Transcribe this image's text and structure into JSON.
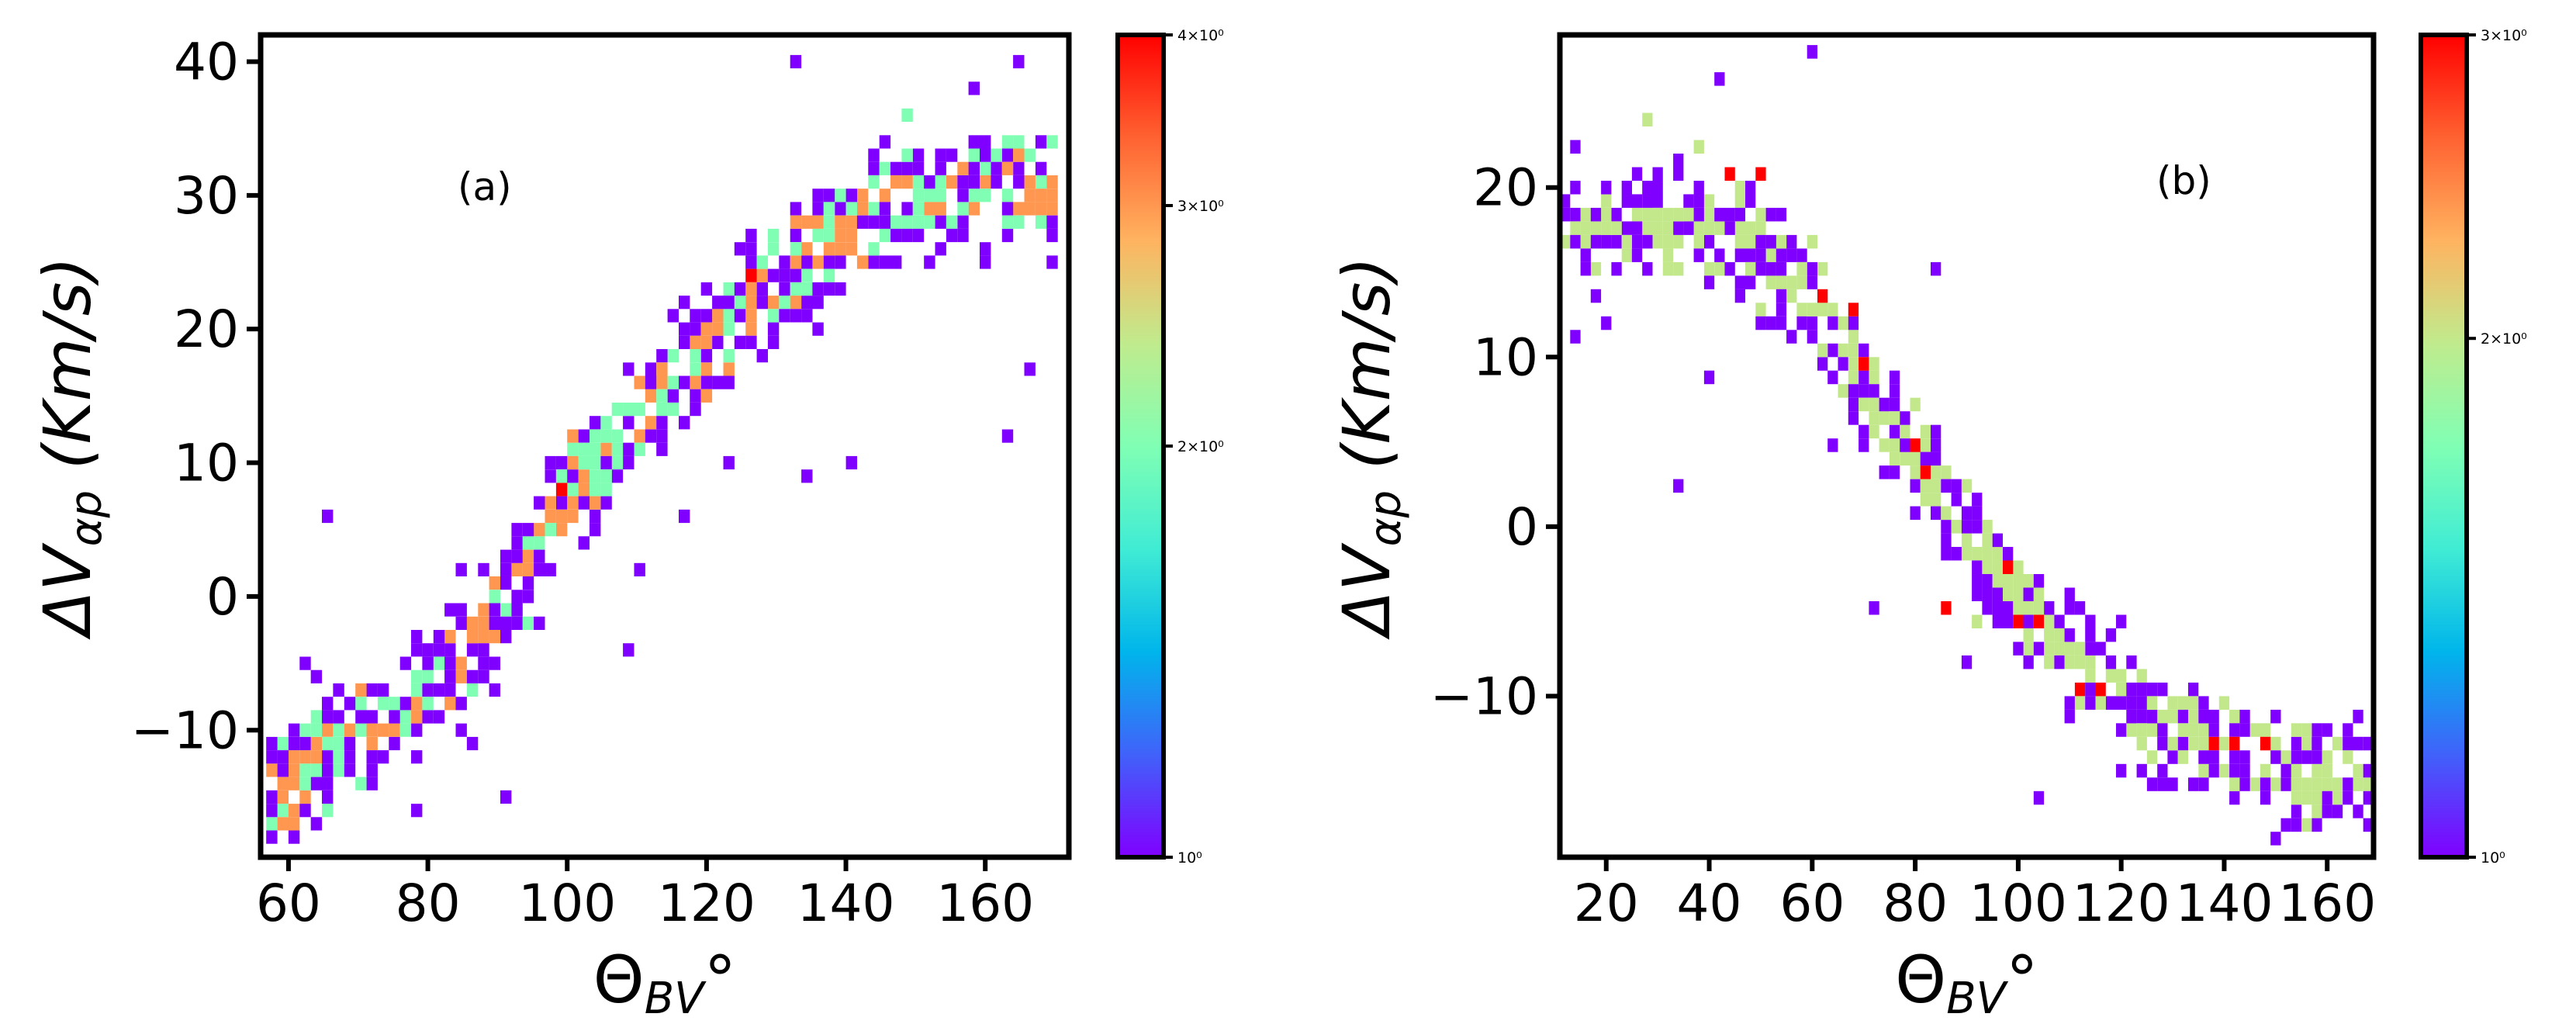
{
  "chart_data": [
    {
      "type": "heatmap",
      "panel_label": "(a)",
      "xlabel": "Θ",
      "xlabel_sub": "BV",
      "xlabel_suffix": "°",
      "ylabel": "ΔV",
      "ylabel_sub": "αp",
      "ylabel_suffix": " (Km/s)",
      "xlim": [
        56,
        172
      ],
      "ylim": [
        -19.5,
        42
      ],
      "xticks": [
        60,
        80,
        100,
        120,
        140,
        160
      ],
      "xtick_labels": [
        "60",
        "80",
        "100",
        "120",
        "140",
        "160"
      ],
      "yticks": [
        -10,
        0,
        10,
        20,
        30,
        40
      ],
      "ytick_labels": [
        "−10",
        "0",
        "10",
        "20",
        "30",
        "40"
      ],
      "bin_width": 1.6,
      "bin_height": 1.0,
      "colorbar": {
        "scale": "log",
        "range": [
          1,
          4
        ],
        "ticks": [
          1,
          2,
          3,
          4
        ],
        "tick_labels": [
          "10⁰",
          "2×10⁰",
          "3×10⁰",
          "4×10⁰"
        ],
        "colormap": [
          "#8000ff",
          "#4062fa",
          "#00b5eb",
          "#40ecd4",
          "#80ffb4",
          "#c0eb8d",
          "#ffb360",
          "#ff6231",
          "#ff0000"
        ]
      },
      "band": {
        "center": [
          [
            56,
            -17
          ],
          [
            64,
            -12
          ],
          [
            76,
            -9
          ],
          [
            88,
            -3
          ],
          [
            98,
            6
          ],
          [
            108,
            12
          ],
          [
            120,
            19
          ],
          [
            132,
            24
          ],
          [
            144,
            29
          ],
          [
            160,
            31
          ],
          [
            172,
            30
          ]
        ],
        "spread": 6,
        "count": 820,
        "seed": 11
      },
      "cells": [
        [
          57,
          -13.5,
          3
        ],
        [
          61,
          -18,
          1
        ],
        [
          62,
          -5.5,
          1
        ],
        [
          66,
          5.5,
          1
        ],
        [
          71,
          -10,
          2
        ],
        [
          73,
          -8.5,
          2
        ],
        [
          76,
          -10.5,
          2
        ],
        [
          78,
          -16.5,
          1
        ],
        [
          84,
          -10,
          1
        ],
        [
          86,
          -11.5,
          1
        ],
        [
          85,
          1.5,
          1
        ],
        [
          91,
          -15.5,
          1
        ],
        [
          93,
          -0.5,
          1
        ],
        [
          93,
          -2.5,
          1
        ],
        [
          96,
          -2.5,
          1
        ],
        [
          99,
          7.5,
          4
        ],
        [
          100,
          8.5,
          1
        ],
        [
          101,
          11.5,
          3
        ],
        [
          102,
          10.5,
          2
        ],
        [
          104,
          6.5,
          3
        ],
        [
          105,
          7.5,
          2
        ],
        [
          106,
          12.5,
          2
        ],
        [
          108,
          13.5,
          2
        ],
        [
          110,
          12,
          3
        ],
        [
          113,
          16.5,
          3
        ],
        [
          114,
          15,
          2
        ],
        [
          118,
          18,
          2
        ],
        [
          120,
          14.5,
          3
        ],
        [
          121,
          20.5,
          3
        ],
        [
          123,
          22.5,
          2
        ],
        [
          126,
          23.5,
          4
        ],
        [
          128,
          24.5,
          2
        ],
        [
          130,
          26.5,
          2
        ],
        [
          136,
          19.5,
          1
        ],
        [
          138,
          28.5,
          2
        ],
        [
          141,
          27,
          3
        ],
        [
          142,
          28.5,
          3
        ],
        [
          145,
          31.5,
          2
        ],
        [
          148,
          35.5,
          2
        ],
        [
          150,
          30.5,
          2
        ],
        [
          153,
          25.5,
          1
        ],
        [
          155,
          42,
          1
        ],
        [
          158,
          37.5,
          1
        ],
        [
          160,
          24.5,
          1
        ],
        [
          163,
          11.5,
          1
        ],
        [
          165,
          39.5,
          1
        ],
        [
          167,
          16.5,
          1
        ],
        [
          171,
          27.5,
          1
        ],
        [
          133,
          40,
          1
        ],
        [
          108,
          -4.5,
          1
        ],
        [
          110,
          1.5,
          1
        ],
        [
          116,
          5.5,
          1
        ],
        [
          123,
          9.5,
          1
        ],
        [
          134,
          8.5,
          1
        ],
        [
          140,
          9.5,
          1
        ]
      ]
    },
    {
      "type": "heatmap",
      "panel_label": "(b)",
      "xlabel": "Θ",
      "xlabel_sub": "BV",
      "xlabel_suffix": "°",
      "ylabel": "ΔV",
      "ylabel_sub": "αp",
      "ylabel_suffix": " (Km/s)",
      "xlim": [
        11,
        169
      ],
      "ylim": [
        -19.5,
        29
      ],
      "xticks": [
        20,
        40,
        60,
        80,
        100,
        120,
        140,
        160
      ],
      "xtick_labels": [
        "20",
        "40",
        "60",
        "80",
        "100",
        "120",
        "140",
        "160"
      ],
      "yticks": [
        -10,
        0,
        10,
        20
      ],
      "ytick_labels": [
        "−10",
        "0",
        "10",
        "20"
      ],
      "bin_width": 2.0,
      "bin_height": 0.8,
      "colorbar": {
        "scale": "log",
        "range": [
          1,
          3
        ],
        "ticks": [
          1,
          2,
          3
        ],
        "tick_labels": [
          "10⁰",
          "2×10⁰",
          "3×10⁰"
        ],
        "colormap": [
          "#8000ff",
          "#4062fa",
          "#00b5eb",
          "#40ecd4",
          "#80ffb4",
          "#c0eb8d",
          "#ffb360",
          "#ff6231",
          "#ff0000"
        ]
      },
      "band": {
        "center": [
          [
            11,
            17
          ],
          [
            30,
            18
          ],
          [
            45,
            17
          ],
          [
            60,
            13
          ],
          [
            75,
            6
          ],
          [
            85,
            2
          ],
          [
            95,
            -3
          ],
          [
            105,
            -6
          ],
          [
            115,
            -9
          ],
          [
            130,
            -12
          ],
          [
            150,
            -14
          ],
          [
            169,
            -15
          ]
        ],
        "spread": 4.5,
        "count": 720,
        "seed": 29
      },
      "cells": [
        [
          13,
          22,
          1
        ],
        [
          14,
          11,
          1
        ],
        [
          20,
          12,
          1
        ],
        [
          24,
          19,
          1
        ],
        [
          28,
          24,
          2
        ],
        [
          30,
          16.5,
          2
        ],
        [
          33,
          2.5,
          1
        ],
        [
          36,
          29,
          1
        ],
        [
          38,
          22.5,
          2
        ],
        [
          42,
          26.5,
          1
        ],
        [
          44,
          21,
          3
        ],
        [
          46,
          20,
          2
        ],
        [
          49,
          20.5,
          3
        ],
        [
          52,
          16,
          2
        ],
        [
          55,
          17,
          1
        ],
        [
          57,
          15.5,
          2
        ],
        [
          59,
          16.5,
          2
        ],
        [
          60,
          28,
          1
        ],
        [
          62,
          13.5,
          3
        ],
        [
          64,
          4.5,
          1
        ],
        [
          68,
          12.5,
          3
        ],
        [
          70,
          9.5,
          3
        ],
        [
          73,
          3.5,
          1
        ],
        [
          76,
          6.5,
          2
        ],
        [
          79,
          7.5,
          2
        ],
        [
          80,
          5,
          3
        ],
        [
          82,
          3.5,
          3
        ],
        [
          84,
          15,
          1
        ],
        [
          85,
          -4.5,
          3
        ],
        [
          86,
          1,
          2
        ],
        [
          90,
          2.5,
          2
        ],
        [
          94,
          -4,
          1
        ],
        [
          96,
          -0.5,
          1
        ],
        [
          98,
          -2.5,
          3
        ],
        [
          100,
          -5.5,
          3
        ],
        [
          101,
          -3.5,
          2
        ],
        [
          104,
          -6,
          3
        ],
        [
          106,
          -7.5,
          2
        ],
        [
          110,
          -5,
          1
        ],
        [
          112,
          -9.5,
          3
        ],
        [
          115,
          -9.5,
          3
        ],
        [
          120,
          -5.5,
          1
        ],
        [
          125,
          -13.5,
          2
        ],
        [
          132,
          -14,
          2
        ],
        [
          138,
          -13,
          3
        ],
        [
          142,
          -12.5,
          3
        ],
        [
          145,
          -15,
          2
        ],
        [
          148,
          -13,
          3
        ],
        [
          150,
          -18.5,
          1
        ],
        [
          155,
          -17.5,
          2
        ],
        [
          160,
          -14,
          2
        ],
        [
          165,
          -15.5,
          2
        ],
        [
          168,
          -14.5,
          1
        ],
        [
          104,
          -16,
          1
        ],
        [
          72,
          -5,
          1
        ],
        [
          40,
          9,
          1
        ],
        [
          90,
          -8,
          1
        ]
      ]
    }
  ]
}
